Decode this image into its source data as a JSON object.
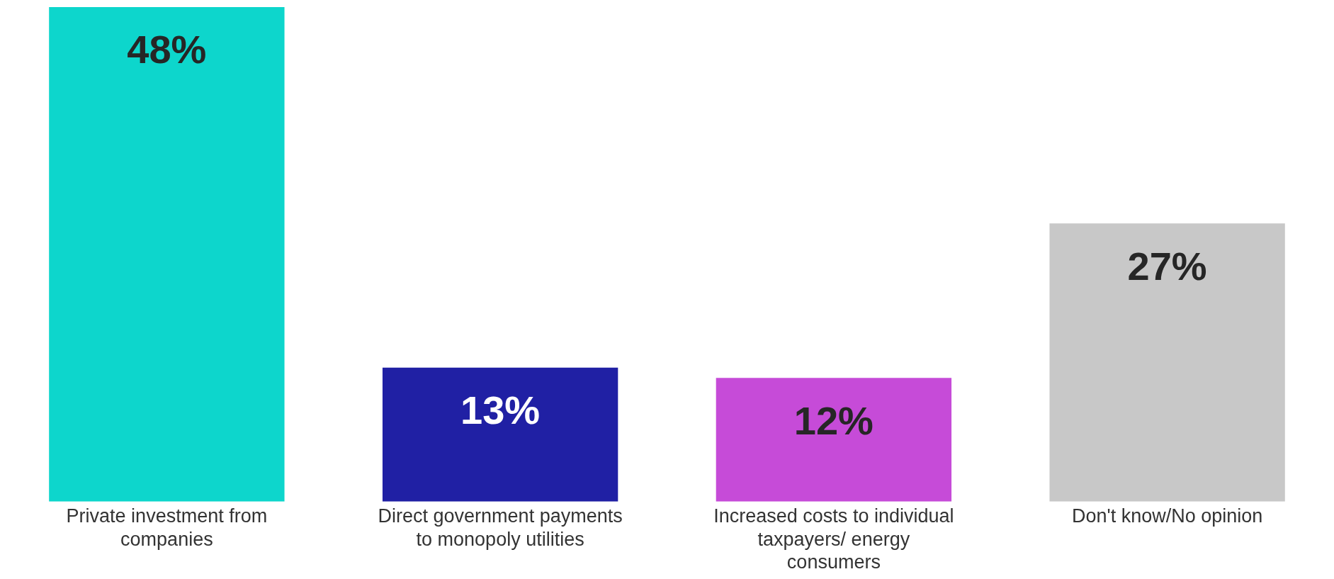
{
  "chart_data": {
    "type": "bar",
    "categories": [
      "Private investment from companies",
      "Direct government payments to monopoly utilities",
      "Increased costs to individual taxpayers/ energy consumers",
      "Don't know/No opinion"
    ],
    "values": [
      48,
      13,
      12,
      27
    ],
    "colors": [
      "#0dd6cc",
      "#2020a4",
      "#c64bd8",
      "#c8c8c8"
    ],
    "value_labels": [
      "48%",
      "13%",
      "12%",
      "27%"
    ],
    "grid": false,
    "legend": false
  }
}
